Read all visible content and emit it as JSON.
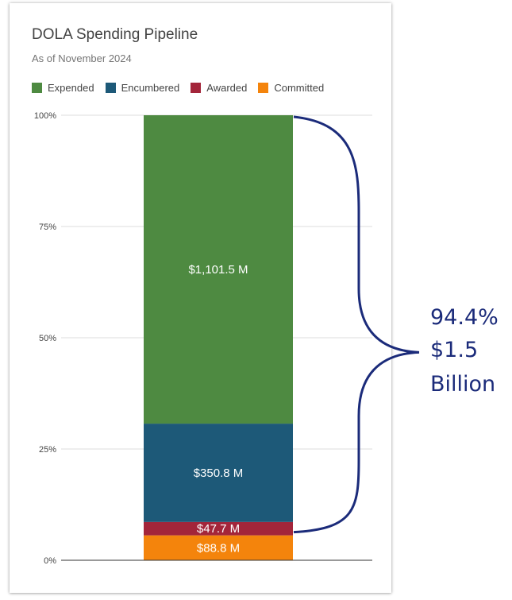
{
  "chart_data": {
    "type": "bar",
    "stacked": true,
    "title": "DOLA Spending Pipeline",
    "subtitle": "As of November 2024",
    "legend_position": "top",
    "grid": true,
    "ylim": [
      0,
      100
    ],
    "y_ticks": [
      "0%",
      "25%",
      "50%",
      "75%",
      "100%"
    ],
    "categories": [
      ""
    ],
    "series": [
      {
        "name": "Committed",
        "color": "#f4840c",
        "percent": 5.6,
        "label": "$88.8 M"
      },
      {
        "name": "Awarded",
        "color": "#a3253a",
        "percent": 3.0,
        "label": "$47.7 M"
      },
      {
        "name": "Encumbered",
        "color": "#1d5978",
        "percent": 22.1,
        "label": "$350.8 M"
      },
      {
        "name": "Expended",
        "color": "#4e8a41",
        "percent": 69.3,
        "label": "$1,101.5 M"
      }
    ],
    "legend_order": [
      "Expended",
      "Encumbered",
      "Awarded",
      "Committed"
    ],
    "annotation": {
      "lines": [
        "94.4%",
        "$1.5",
        "Billion"
      ],
      "color": "#1b2b7a",
      "spans_series": [
        "Awarded",
        "Encumbered",
        "Expended"
      ]
    }
  }
}
